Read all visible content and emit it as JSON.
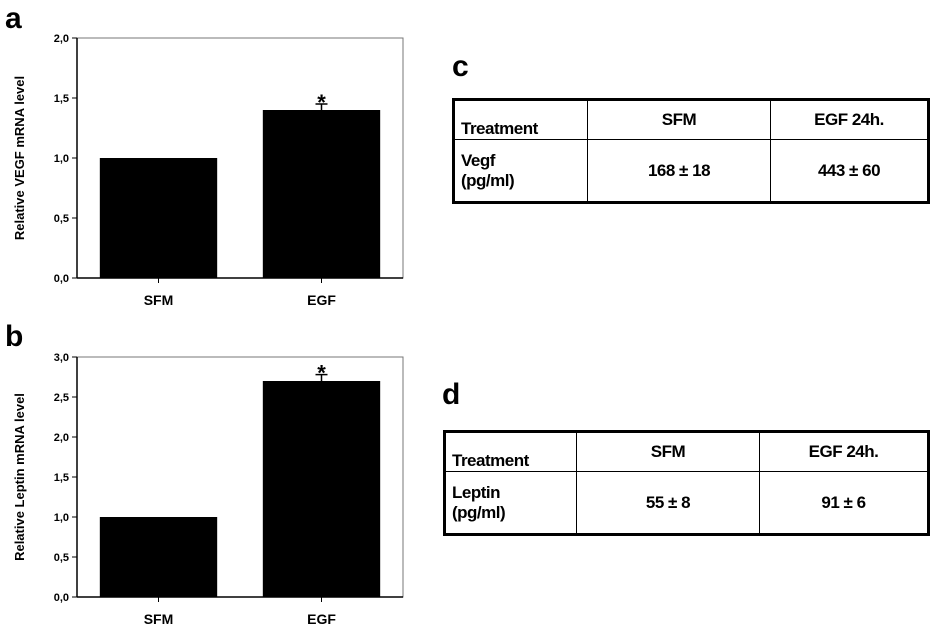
{
  "panels": {
    "a": "a",
    "b": "b",
    "c": "c",
    "d": "d"
  },
  "chart_data": [
    {
      "type": "bar",
      "categories": [
        "SFM",
        "EGF"
      ],
      "values": [
        1.0,
        1.4
      ],
      "errors": [
        0,
        0.05
      ],
      "significance": [
        "",
        "*"
      ],
      "ylabel": "Relative VEGF mRNA level",
      "xlabel": "",
      "ylim": [
        0,
        2.0
      ],
      "yticks": [
        "0,0",
        "0,5",
        "1,0",
        "1,5",
        "2,0"
      ],
      "ytick_values": [
        0,
        0.5,
        1.0,
        1.5,
        2.0
      ],
      "grid": false,
      "bar_color": "#000000"
    },
    {
      "type": "bar",
      "categories": [
        "SFM",
        "EGF"
      ],
      "values": [
        1.0,
        2.7
      ],
      "errors": [
        0,
        0.08
      ],
      "significance": [
        "",
        "*"
      ],
      "ylabel": "Relative Leptin mRNA level",
      "xlabel": "",
      "ylim": [
        0,
        3.0
      ],
      "yticks": [
        "0,0",
        "0,5",
        "1,0",
        "1,5",
        "2,0",
        "2,5",
        "3,0"
      ],
      "ytick_values": [
        0,
        0.5,
        1.0,
        1.5,
        2.0,
        2.5,
        3.0
      ],
      "grid": false,
      "bar_color": "#000000"
    },
    {
      "type": "table",
      "headers": [
        "Treatment",
        "SFM",
        "EGF 24h."
      ],
      "rows": [
        [
          "Vegf\n(pg/ml)",
          "168 ± 18",
          "443 ± 60"
        ]
      ]
    },
    {
      "type": "table",
      "headers": [
        "Treatment",
        "SFM",
        "EGF 24h."
      ],
      "rows": [
        [
          "Leptin\n(pg/ml)",
          "55 ± 8",
          "91 ± 6"
        ]
      ]
    }
  ]
}
